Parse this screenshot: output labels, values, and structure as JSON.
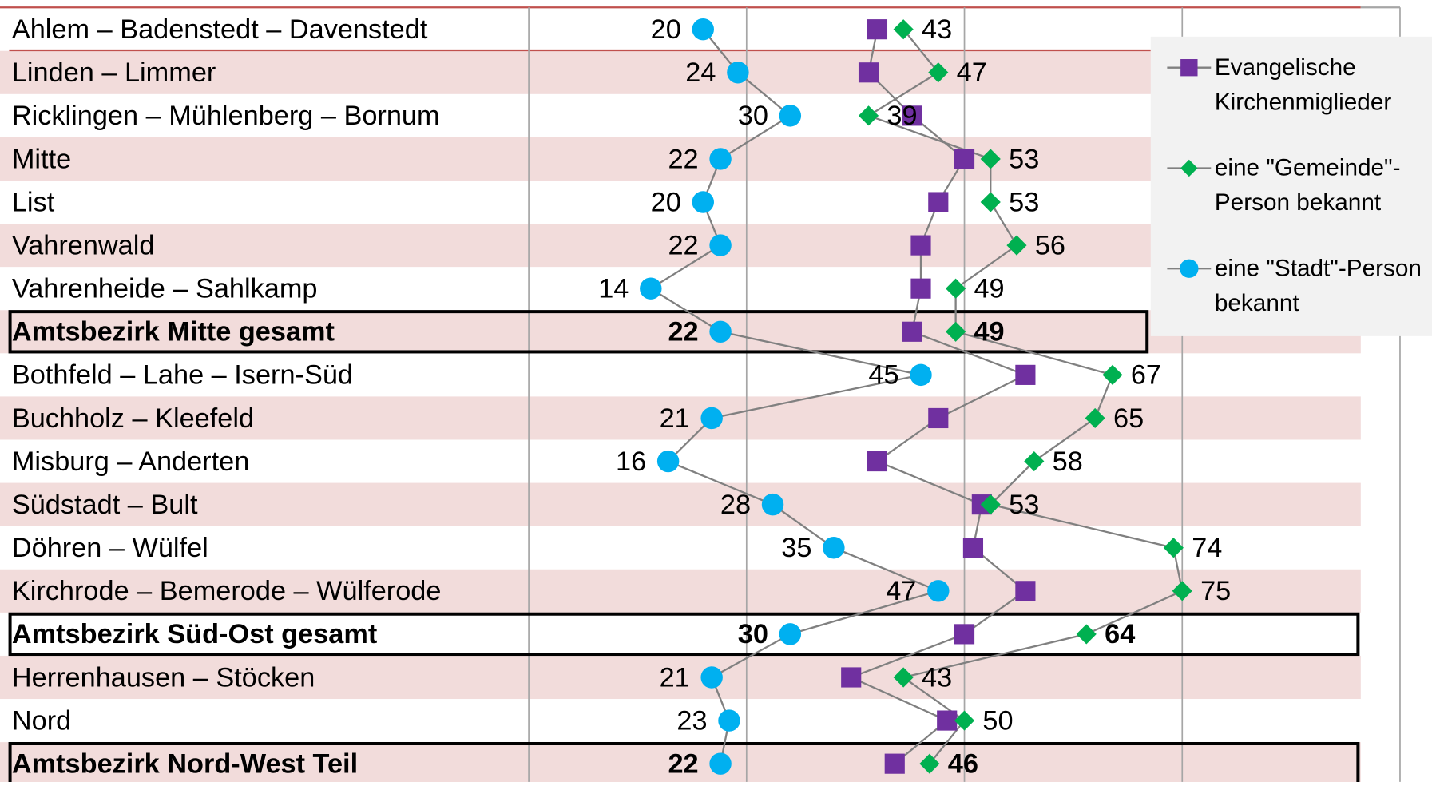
{
  "chart_data": {
    "type": "dot",
    "categories": [
      "Ahlem – Badenstedt – Davenstedt",
      "Linden – Limmer",
      "Ricklingen – Mühlenberg – Bornum",
      "Mitte",
      "List",
      "Vahrenwald",
      "Vahrenheide – Sahlkamp",
      "Amtsbezirk Mitte gesamt",
      "Bothfeld – Lahe – Isern-Süd",
      "Buchholz – Kleefeld",
      "Misburg – Anderten",
      "Südstadt – Bult",
      "Döhren – Wülfel",
      "Kirchrode – Bemerode – Wülferode",
      "Amtsbezirk Süd-Ost gesamt",
      "Herrenhausen – Stöcken",
      "Nord",
      "Amtsbezirk Nord-West Teil"
    ],
    "series": [
      {
        "name": "Evangelische Kirchenmiglieder",
        "color": "#7030a0",
        "marker": "square",
        "labels": false,
        "values": [
          40,
          39,
          44,
          50,
          47,
          45,
          45,
          44,
          57,
          47,
          40,
          52,
          51,
          57,
          50,
          37,
          48,
          42
        ]
      },
      {
        "name": "eine \"Gemeinde\"-Person bekannt",
        "color": "#00b050",
        "marker": "diamond",
        "labels": true,
        "values": [
          43,
          47,
          39,
          53,
          53,
          56,
          49,
          49,
          67,
          65,
          58,
          53,
          74,
          75,
          64,
          43,
          50,
          46
        ]
      },
      {
        "name": "eine \"Stadt\"-Person bekannt",
        "color": "#00b0f0",
        "marker": "circle",
        "labels": true,
        "values": [
          20,
          24,
          30,
          22,
          20,
          22,
          14,
          22,
          45,
          21,
          16,
          28,
          35,
          47,
          30,
          21,
          23,
          22
        ]
      }
    ],
    "xlim": [
      0,
      100
    ],
    "xticks": [
      0,
      25,
      50,
      75,
      100
    ],
    "grid": true,
    "legend": "upper right"
  }
}
